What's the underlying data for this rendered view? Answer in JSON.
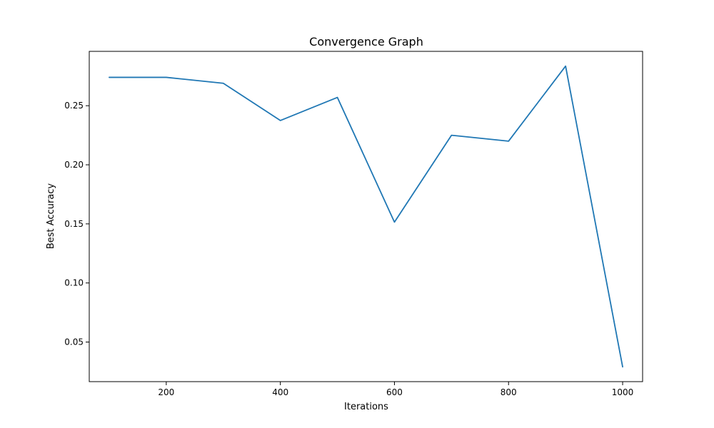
{
  "chart_data": {
    "type": "line",
    "title": "Convergence Graph",
    "xlabel": "Iterations",
    "ylabel": "Best Accuracy",
    "x": [
      100,
      200,
      300,
      400,
      500,
      600,
      700,
      800,
      900,
      1000
    ],
    "series": [
      {
        "values": [
          0.274,
          0.274,
          0.269,
          0.2375,
          0.257,
          0.1515,
          0.225,
          0.22,
          0.2835,
          0.029
        ],
        "color": "#1f77b4"
      }
    ],
    "xlim": [
      65,
      1035
    ],
    "ylim": [
      0.0165,
      0.296
    ],
    "xticks": [
      {
        "value": 200,
        "label": "200"
      },
      {
        "value": 400,
        "label": "400"
      },
      {
        "value": 600,
        "label": "600"
      },
      {
        "value": 800,
        "label": "800"
      },
      {
        "value": 1000,
        "label": "1000"
      }
    ],
    "yticks": [
      {
        "value": 0.05,
        "label": "0.05"
      },
      {
        "value": 0.1,
        "label": "0.10"
      },
      {
        "value": 0.15,
        "label": "0.15"
      },
      {
        "value": 0.2,
        "label": "0.20"
      },
      {
        "value": 0.25,
        "label": "0.25"
      }
    ],
    "grid": false,
    "legend": "none"
  }
}
